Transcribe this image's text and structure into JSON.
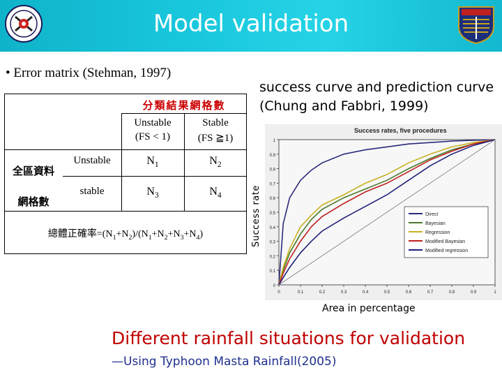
{
  "slide": {
    "title": "Model validation",
    "bullet": "• Error matrix (Stehman, 1997)",
    "success_heading": "success curve   and prediction curve  (Chung and Fabbri, 1999)",
    "ylabel": "Success rate",
    "xlabel": "Area in percentage",
    "red_line": "Different rainfall  situations for validation",
    "sub_line": "—Using Typhoon Masta Rainfall(2005)"
  },
  "matrix": {
    "header": "分類結果網格數",
    "col1": "Unstable",
    "col1b": "(FS < 1)",
    "col2": "Stable",
    "col2b": "(FS ≧1)",
    "row_head1": "全區資料",
    "row_head2": "網格數",
    "row1": "Unstable",
    "row2": "stable",
    "n1": "1",
    "n2": "2",
    "n3": "3",
    "n4": "4",
    "formula_prefix": "總體正確率=(N",
    "formula_a": "1",
    "formula_b": "+N",
    "formula_c": "2",
    "formula_d": ")/(N",
    "formula_e": "1",
    "formula_f": "+N",
    "formula_g": "2",
    "formula_h": "+N",
    "formula_i": "3",
    "formula_j": "+N",
    "formula_k": "4",
    "formula_l": ")"
  },
  "chart_data": {
    "type": "line",
    "title": "Success rates, five procedures",
    "xlim": [
      0,
      1
    ],
    "ylim": [
      0,
      1
    ],
    "xticks": [
      "0",
      "0.1",
      "0.2",
      "0.3",
      "0.4",
      "0.5",
      "0.6",
      "0.7",
      "0.8",
      "0.9",
      "1"
    ],
    "yticks": [
      "0",
      "0.1",
      "0.2",
      "0.3",
      "0.4",
      "0.5",
      "0.6",
      "0.7",
      "0.8",
      "0.9",
      "1"
    ],
    "legend_position": "lower-right",
    "x": [
      0,
      0.02,
      0.05,
      0.1,
      0.15,
      0.2,
      0.3,
      0.4,
      0.5,
      0.6,
      0.7,
      0.8,
      0.9,
      1.0
    ],
    "series": [
      {
        "name": "Direct",
        "color": "#2a2a7a",
        "values": [
          0,
          0.42,
          0.6,
          0.72,
          0.79,
          0.84,
          0.9,
          0.93,
          0.95,
          0.97,
          0.98,
          0.99,
          0.995,
          1.0
        ]
      },
      {
        "name": "Bayesian",
        "color": "#4a7a2a",
        "values": [
          0,
          0.1,
          0.22,
          0.35,
          0.45,
          0.52,
          0.6,
          0.66,
          0.72,
          0.8,
          0.87,
          0.93,
          0.97,
          1.0
        ]
      },
      {
        "name": "Regression",
        "color": "#c8b020",
        "values": [
          0,
          0.12,
          0.25,
          0.4,
          0.48,
          0.55,
          0.62,
          0.7,
          0.76,
          0.84,
          0.9,
          0.95,
          0.98,
          1.0
        ]
      },
      {
        "name": "Modified Bayesian",
        "color": "#c02020",
        "values": [
          0,
          0.08,
          0.18,
          0.3,
          0.4,
          0.47,
          0.56,
          0.64,
          0.7,
          0.78,
          0.86,
          0.92,
          0.97,
          1.0
        ]
      },
      {
        "name": "Modified regression",
        "color": "#20207a",
        "values": [
          0,
          0.05,
          0.12,
          0.22,
          0.3,
          0.37,
          0.46,
          0.54,
          0.62,
          0.72,
          0.82,
          0.9,
          0.96,
          1.0
        ]
      }
    ]
  }
}
